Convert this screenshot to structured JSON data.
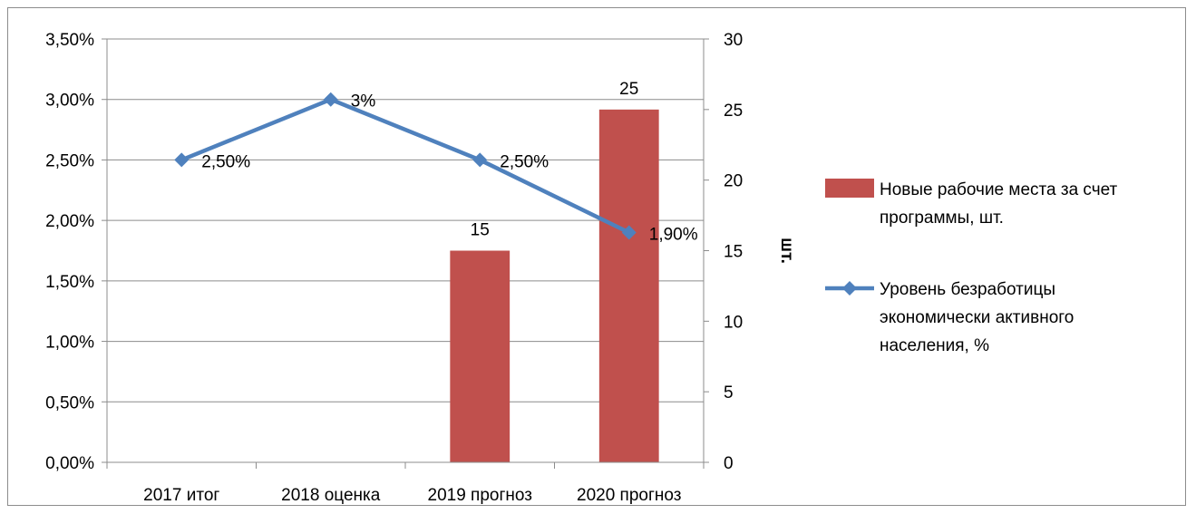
{
  "chart_data": {
    "type": "bar+line",
    "categories": [
      "2017 итог",
      "2018 оценка",
      "2019 прогноз",
      "2020 прогноз"
    ],
    "series": [
      {
        "name": "Новые рабочие места за счет программы, шт.",
        "type": "bar",
        "axis": "right",
        "color": "#c0504d",
        "values": [
          null,
          null,
          15,
          25
        ],
        "data_labels": [
          "",
          "",
          "15",
          "25"
        ]
      },
      {
        "name": "Уровень безработицы экономически активного населения, %",
        "type": "line",
        "axis": "left",
        "color": "#4f81bd",
        "marker": "diamond",
        "values": [
          2.5,
          3.0,
          2.5,
          1.9
        ],
        "data_labels": [
          "2,50%",
          "3%",
          "2,50%",
          "1,90%"
        ]
      }
    ],
    "y_left": {
      "ylim": [
        0,
        3.5
      ],
      "ticks": [
        0,
        0.5,
        1.0,
        1.5,
        2.0,
        2.5,
        3.0,
        3.5
      ],
      "tick_labels": [
        "0,00%",
        "0,50%",
        "1,00%",
        "1,50%",
        "2,00%",
        "2,50%",
        "3,00%",
        "3,50%"
      ]
    },
    "y_right": {
      "ylabel": "шт.",
      "ylim": [
        0,
        30
      ],
      "ticks": [
        0,
        5,
        10,
        15,
        20,
        25,
        30
      ],
      "tick_labels": [
        "0",
        "5",
        "10",
        "15",
        "20",
        "25",
        "30"
      ]
    },
    "grid": true,
    "legend": {
      "position": "right",
      "entries": [
        {
          "lines": [
            "Новые рабочие места за счет",
            "программы, шт."
          ]
        },
        {
          "lines": [
            "Уровень безработицы",
            "экономически активного",
            "населения, %"
          ]
        }
      ]
    }
  }
}
